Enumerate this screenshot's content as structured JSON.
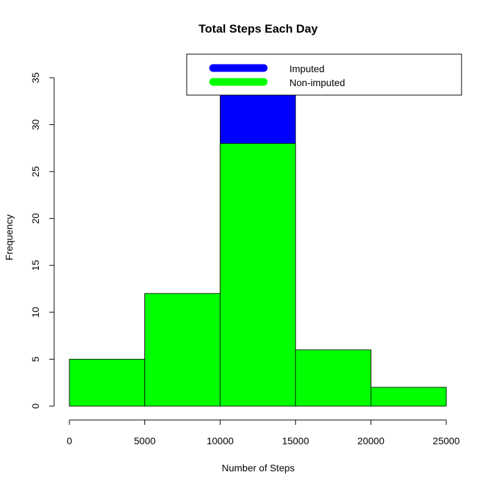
{
  "chart_data": {
    "type": "bar",
    "title": "Total Steps Each Day",
    "xlabel": "Number of Steps",
    "ylabel": "Frequency",
    "xlim": [
      0,
      25000
    ],
    "ylim": [
      0,
      35
    ],
    "x_ticks": [
      "0",
      "5000",
      "10000",
      "15000",
      "20000",
      "25000"
    ],
    "y_ticks": [
      "0",
      "5",
      "10",
      "15",
      "20",
      "25",
      "30",
      "35"
    ],
    "bins": [
      {
        "from": 0,
        "to": 5000
      },
      {
        "from": 5000,
        "to": 10000
      },
      {
        "from": 10000,
        "to": 15000
      },
      {
        "from": 15000,
        "to": 20000
      },
      {
        "from": 20000,
        "to": 25000
      }
    ],
    "series": [
      {
        "name": "Imputed",
        "color": "#0000ff",
        "values": [
          5,
          12,
          36,
          6,
          2
        ]
      },
      {
        "name": "Non-imputed",
        "color": "#00ff00",
        "values": [
          5,
          12,
          28,
          6,
          2
        ]
      }
    ],
    "legend": {
      "position": "top-right",
      "items": [
        "Imputed",
        "Non-imputed"
      ]
    },
    "grid": false
  }
}
